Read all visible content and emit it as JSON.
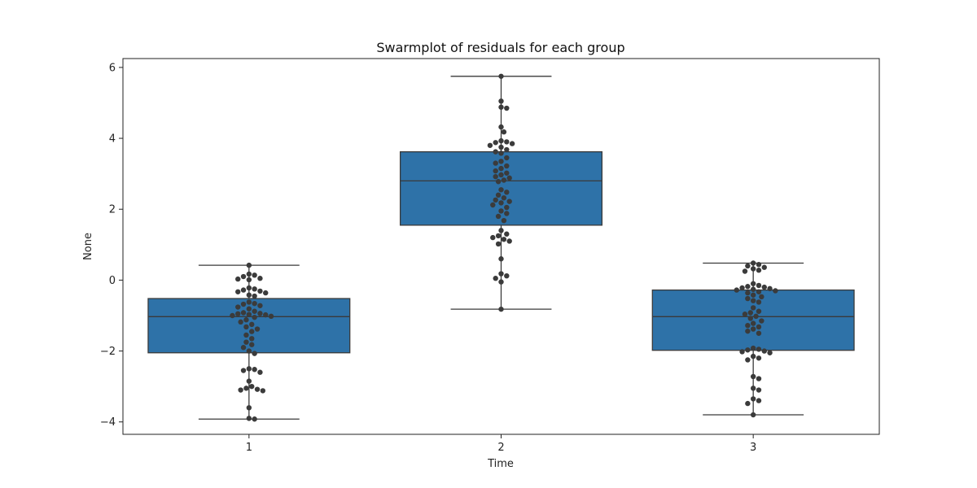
{
  "chart_data": {
    "type": "box",
    "title": "Swarmplot of residuals for each group",
    "xlabel": "Time",
    "ylabel": "None",
    "categories": [
      "1",
      "2",
      "3"
    ],
    "ylim": [
      -4.35,
      6.25
    ],
    "yticks": [
      -4,
      -2,
      0,
      2,
      4,
      6
    ],
    "box_color": "#2e72a8",
    "box_edge_color": "#3a3a3a",
    "point_color": "#3b3b3b",
    "boxes": [
      {
        "category": "1",
        "whisker_low": -3.92,
        "q1": -2.05,
        "median": -1.03,
        "q3": -0.52,
        "whisker_high": 0.42,
        "points": [
          0.42,
          0.17,
          0.14,
          0.1,
          0.05,
          0.03,
          0.01,
          -0.22,
          -0.25,
          -0.28,
          -0.31,
          -0.33,
          -0.36,
          -0.42,
          -0.45,
          -0.62,
          -0.66,
          -0.68,
          -0.72,
          -0.76,
          -0.81,
          -0.88,
          -0.92,
          -0.94,
          -0.95,
          -0.97,
          -0.98,
          -1.0,
          -1.02,
          -1.05,
          -1.12,
          -1.18,
          -1.25,
          -1.32,
          -1.38,
          -1.45,
          -1.55,
          -1.65,
          -1.75,
          -1.82,
          -1.9,
          -2.0,
          -2.07,
          -2.5,
          -2.52,
          -2.55,
          -2.6,
          -2.85,
          -3.0,
          -3.05,
          -3.08,
          -3.1,
          -3.12,
          -3.6,
          -3.9,
          -3.92
        ]
      },
      {
        "category": "2",
        "whisker_low": -0.82,
        "q1": 1.55,
        "median": 2.8,
        "q3": 3.62,
        "whisker_high": 5.75,
        "points": [
          5.75,
          5.05,
          4.88,
          4.85,
          4.32,
          4.18,
          3.93,
          3.9,
          3.88,
          3.85,
          3.8,
          3.75,
          3.68,
          3.62,
          3.58,
          3.45,
          3.35,
          3.3,
          3.22,
          3.15,
          3.08,
          3.02,
          2.97,
          2.92,
          2.88,
          2.82,
          2.78,
          2.55,
          2.48,
          2.4,
          2.32,
          2.26,
          2.22,
          2.18,
          2.12,
          2.05,
          1.95,
          1.88,
          1.8,
          1.68,
          1.4,
          1.3,
          1.25,
          1.2,
          1.15,
          1.1,
          1.02,
          0.6,
          0.18,
          0.12,
          0.05,
          -0.05,
          -0.82
        ]
      },
      {
        "category": "3",
        "whisker_low": -3.8,
        "q1": -1.98,
        "median": -1.03,
        "q3": -0.28,
        "whisker_high": 0.48,
        "points": [
          0.48,
          0.44,
          0.4,
          0.36,
          0.32,
          0.28,
          0.25,
          -0.1,
          -0.15,
          -0.18,
          -0.2,
          -0.22,
          -0.24,
          -0.26,
          -0.28,
          -0.3,
          -0.33,
          -0.36,
          -0.42,
          -0.47,
          -0.52,
          -0.58,
          -0.62,
          -0.78,
          -0.88,
          -0.92,
          -0.96,
          -1.02,
          -1.08,
          -1.15,
          -1.22,
          -1.28,
          -1.32,
          -1.38,
          -1.44,
          -1.5,
          -1.92,
          -1.95,
          -1.97,
          -2.0,
          -2.02,
          -2.05,
          -2.15,
          -2.2,
          -2.25,
          -2.72,
          -2.78,
          -3.05,
          -3.1,
          -3.35,
          -3.4,
          -3.48,
          -3.8
        ]
      }
    ]
  }
}
